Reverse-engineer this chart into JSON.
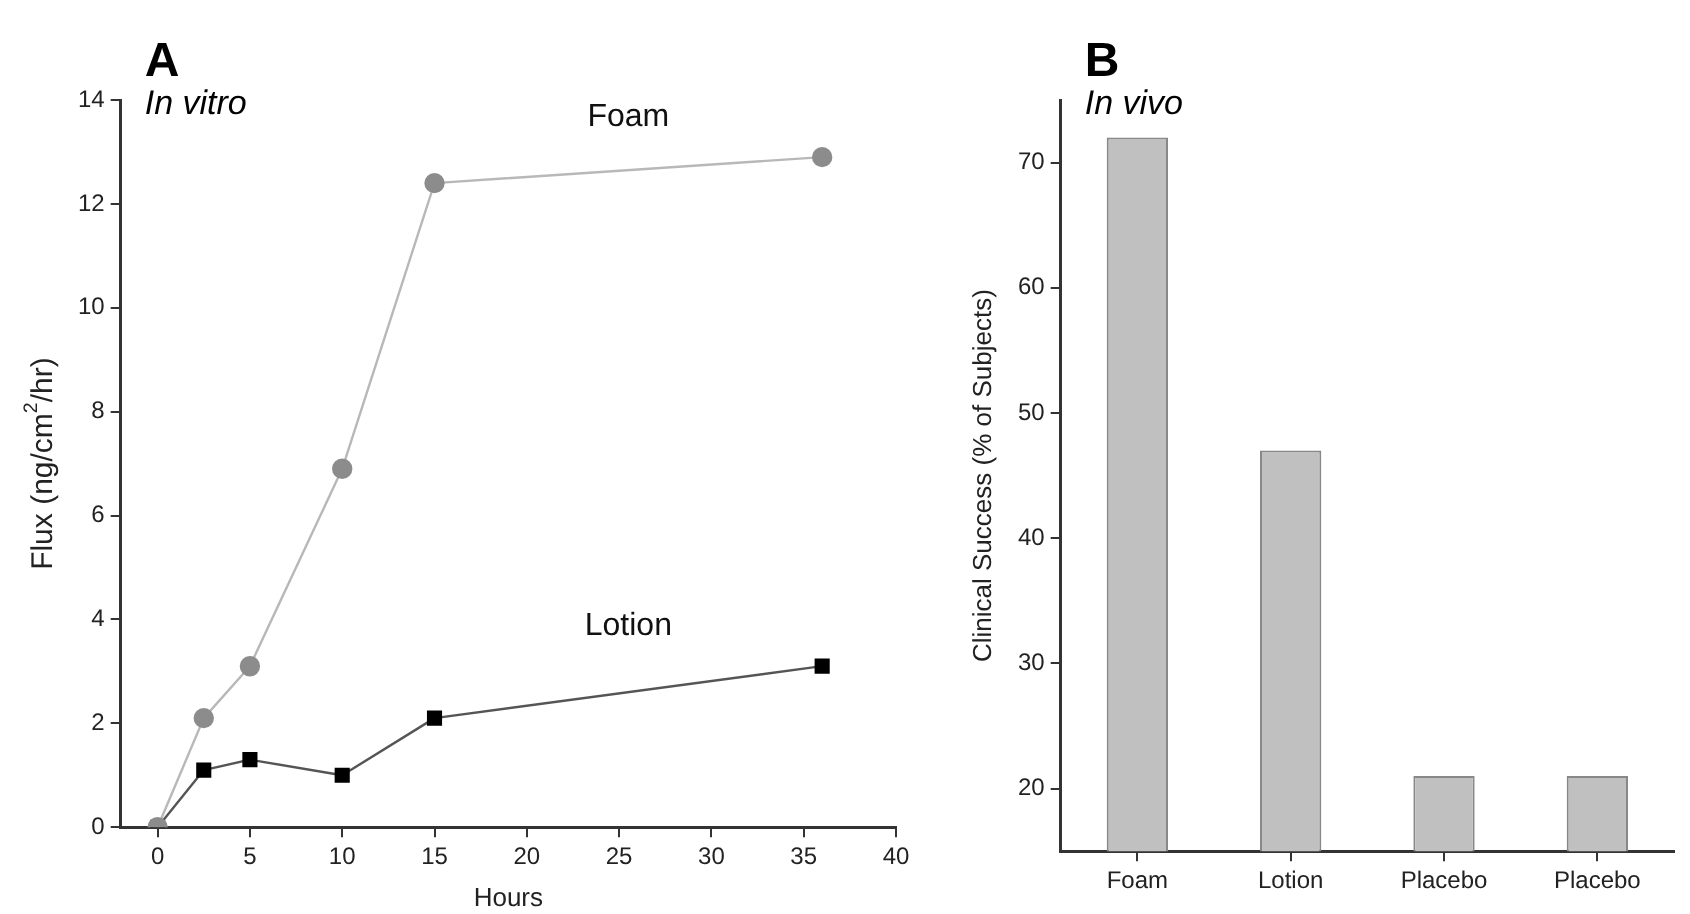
{
  "chart_data": [
    {
      "type": "line",
      "title": "A",
      "subtitle": "In vitro",
      "xlabel": "Hours",
      "ylabel": "Flux (ng/cm$^{2}$/hr)",
      "xlim": [
        -2,
        40
      ],
      "xticks": [
        0,
        5,
        10,
        15,
        20,
        25,
        30,
        35,
        40
      ],
      "ylim": [
        0,
        14
      ],
      "yticks": [
        0,
        2,
        4,
        6,
        8,
        10,
        12,
        14
      ],
      "grid": false,
      "legend": false,
      "series": [
        {
          "name": "Foam",
          "color": "#8c8c8c",
          "marker": "circle",
          "x": [
            0,
            2.5,
            5,
            10,
            15,
            36
          ],
          "values": [
            0,
            2.1,
            3.1,
            6.9,
            12.4,
            12.9
          ]
        },
        {
          "name": "Lotion",
          "color": "#000000",
          "marker": "square",
          "x": [
            0,
            2.5,
            5,
            10,
            15,
            36
          ],
          "values": [
            0,
            1.1,
            1.3,
            1.0,
            2.1,
            3.1
          ]
        }
      ]
    },
    {
      "type": "bar",
      "title": "B",
      "subtitle": "In vivo",
      "ylabel": "Clinical Success (% of Subjects)",
      "categories": [
        "Foam",
        "Lotion",
        "Placebo",
        "Placebo"
      ],
      "values": [
        72,
        47,
        21,
        21
      ],
      "color": "#c0c0c0",
      "ylim": [
        15,
        75
      ],
      "yticks": [
        20,
        30,
        40,
        50,
        60,
        70
      ],
      "grid": false,
      "legend": false
    }
  ]
}
